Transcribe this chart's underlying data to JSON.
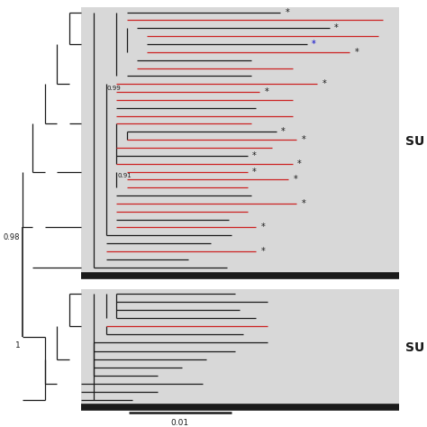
{
  "fig_width": 4.74,
  "fig_height": 4.74,
  "dpi": 100,
  "bg_color": "#d8d8d8",
  "white_bg": "#ffffff",
  "scale_bar_label": "0.01",
  "label_SU1": "SU",
  "label_SU2": "SU",
  "node_label_098": "0.98",
  "node_label_099": "0.99",
  "node_label_091": "0.91",
  "node_label_1": "1",
  "red": "#cc2222",
  "blk": "#1a1a1a",
  "blue": "#0000cc"
}
